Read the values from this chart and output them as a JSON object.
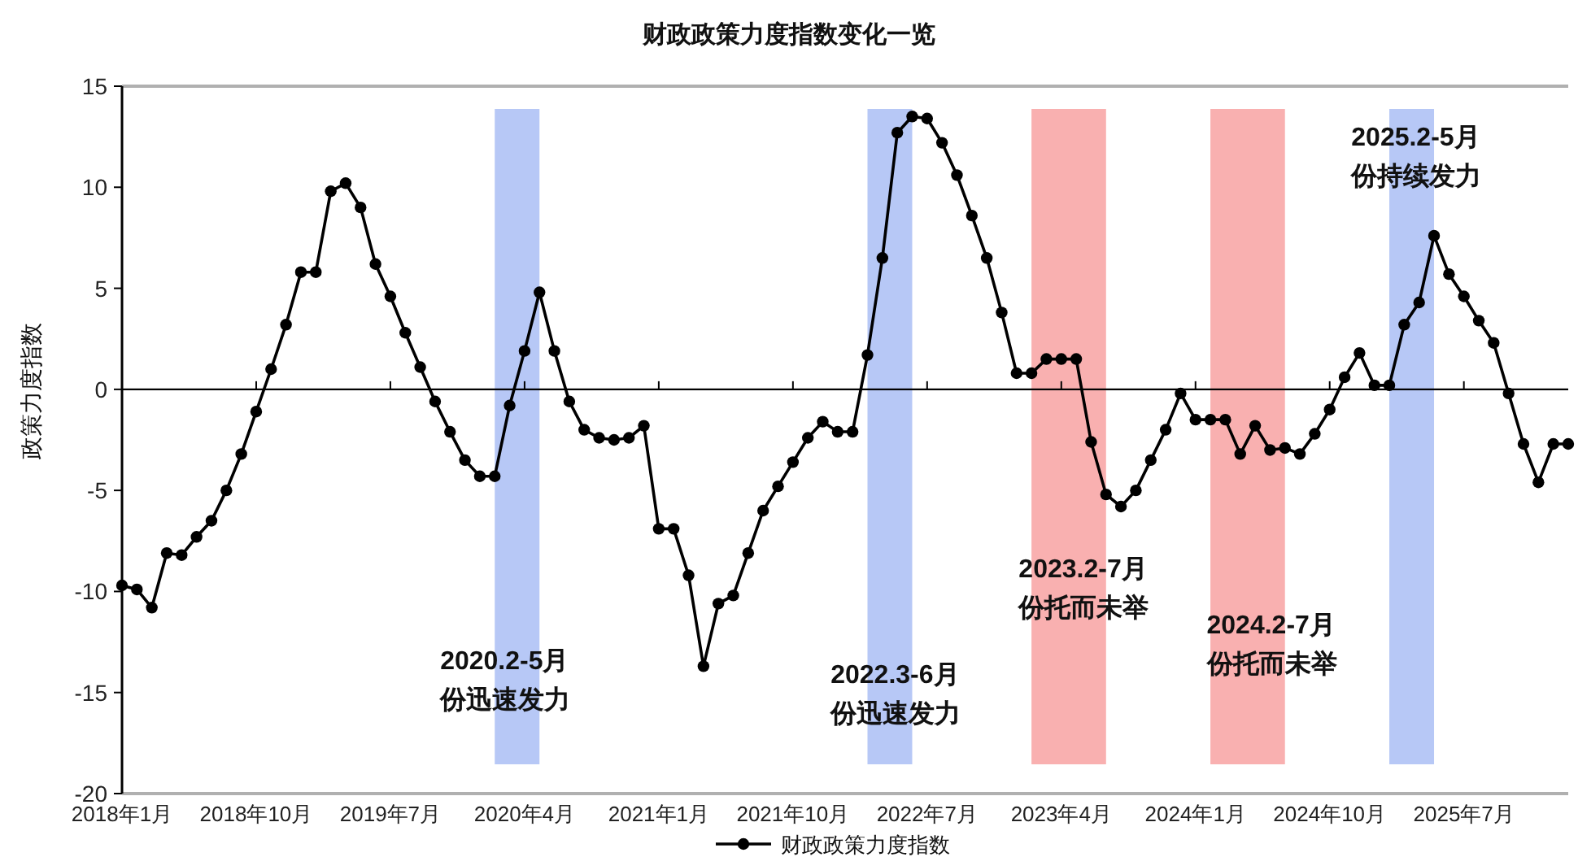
{
  "chart_data": {
    "type": "line",
    "title": "财政政策力度指数变化一览",
    "ylabel": "政策力度指数",
    "x": [
      "2018-01",
      "2018-02",
      "2018-03",
      "2018-04",
      "2018-05",
      "2018-06",
      "2018-07",
      "2018-08",
      "2018-09",
      "2018-10",
      "2018-11",
      "2018-12",
      "2019-01",
      "2019-02",
      "2019-03",
      "2019-04",
      "2019-05",
      "2019-06",
      "2019-07",
      "2019-08",
      "2019-09",
      "2019-10",
      "2019-11",
      "2019-12",
      "2020-01",
      "2020-02",
      "2020-03",
      "2020-04",
      "2020-05",
      "2020-06",
      "2020-07",
      "2020-08",
      "2020-09",
      "2020-10",
      "2020-11",
      "2020-12",
      "2021-01",
      "2021-02",
      "2021-03",
      "2021-04",
      "2021-05",
      "2021-06",
      "2021-07",
      "2021-08",
      "2021-09",
      "2021-10",
      "2021-11",
      "2021-12",
      "2022-01",
      "2022-02",
      "2022-03",
      "2022-04",
      "2022-05",
      "2022-06",
      "2022-07",
      "2022-08",
      "2022-09",
      "2022-10",
      "2022-11",
      "2022-12",
      "2023-01",
      "2023-02",
      "2023-03",
      "2023-04",
      "2023-05",
      "2023-06",
      "2023-07",
      "2023-08",
      "2023-09",
      "2023-10",
      "2023-11",
      "2023-12",
      "2024-01",
      "2024-02",
      "2024-03",
      "2024-04",
      "2024-05",
      "2024-06",
      "2024-07",
      "2024-08",
      "2024-09",
      "2024-10",
      "2024-11",
      "2024-12",
      "2025-01",
      "2025-02",
      "2025-03",
      "2025-04",
      "2025-05",
      "2025-06",
      "2025-07",
      "2025-08",
      "2025-09",
      "2025-10",
      "2025-11",
      "2025-12",
      "2026-01",
      "2026-02"
    ],
    "series": [
      {
        "name": "财政政策力度指数",
        "color": "#000000",
        "values": [
          -9.7,
          -9.9,
          -10.8,
          -8.1,
          -8.2,
          -7.3,
          -6.5,
          -5.0,
          -3.2,
          -1.1,
          1.0,
          3.2,
          5.8,
          5.8,
          9.8,
          10.2,
          9.0,
          6.2,
          4.6,
          2.8,
          1.1,
          -0.6,
          -2.1,
          -3.5,
          -4.3,
          -4.3,
          -0.8,
          1.9,
          4.8,
          1.9,
          -0.6,
          -2.0,
          -2.4,
          -2.5,
          -2.4,
          -1.8,
          -6.9,
          -6.9,
          -9.2,
          -13.7,
          -10.6,
          -10.2,
          -8.1,
          -6.0,
          -4.8,
          -3.6,
          -2.4,
          -1.6,
          -2.1,
          -2.1,
          1.7,
          6.5,
          12.7,
          13.5,
          13.4,
          12.2,
          10.6,
          8.6,
          6.5,
          3.8,
          0.8,
          0.8,
          1.5,
          1.5,
          1.5,
          -2.6,
          -5.2,
          -5.8,
          -5.0,
          -3.5,
          -2.0,
          -0.2,
          -1.5,
          -1.5,
          -1.5,
          -3.2,
          -1.8,
          -3.0,
          -2.9,
          -3.2,
          -2.2,
          -1.0,
          0.6,
          1.8,
          0.2,
          0.2,
          3.2,
          4.3,
          7.6,
          5.7,
          4.6,
          3.4,
          2.3,
          -0.2,
          -2.7,
          -4.6,
          -2.7,
          -2.7
        ]
      }
    ],
    "xlim": [
      "2018-01",
      "2026-02"
    ],
    "xticks": [
      {
        "value": "2018-01",
        "label": "2018年1月"
      },
      {
        "value": "2018-10",
        "label": "2018年10月"
      },
      {
        "value": "2019-07",
        "label": "2019年7月"
      },
      {
        "value": "2020-04",
        "label": "2020年4月"
      },
      {
        "value": "2021-01",
        "label": "2021年1月"
      },
      {
        "value": "2021-10",
        "label": "2021年10月"
      },
      {
        "value": "2022-07",
        "label": "2022年7月"
      },
      {
        "value": "2023-04",
        "label": "2023年4月"
      },
      {
        "value": "2024-01",
        "label": "2024年1月"
      },
      {
        "value": "2024-10",
        "label": "2024年10月"
      },
      {
        "value": "2025-07",
        "label": "2025年7月"
      }
    ],
    "ylim": [
      -20,
      15
    ],
    "yticks": [
      -20,
      -15,
      -10,
      -5,
      0,
      5,
      10,
      15
    ],
    "bands": [
      {
        "axis": "x",
        "from": "2020-02",
        "to": "2020-05",
        "color": "#b7c8f6"
      },
      {
        "axis": "x",
        "from": "2022-03",
        "to": "2022-06",
        "color": "#b7c8f6"
      },
      {
        "axis": "x",
        "from": "2023-02",
        "to": "2023-07",
        "color": "#f9b0b0"
      },
      {
        "axis": "x",
        "from": "2024-02",
        "to": "2024-07",
        "color": "#f9b0b0"
      },
      {
        "axis": "x",
        "from": "2025-02",
        "to": "2025-05",
        "color": "#b7c8f6"
      }
    ],
    "annotations": [
      "2020.2-5月份迅速发力",
      "2022.3-6月份迅速发力",
      "2023.2-7月份托而未举",
      "2024.2-7月份托而未举",
      "2025.2-5月份持续发力"
    ],
    "legend": "bottom",
    "marker": "circle",
    "line_style": "solid"
  }
}
